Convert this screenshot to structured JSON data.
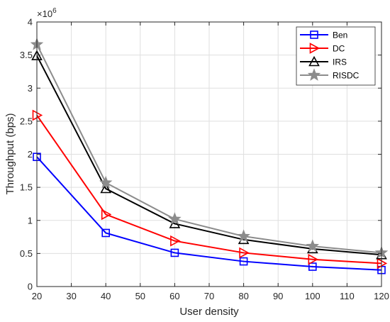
{
  "chart_data": {
    "type": "line",
    "title": "",
    "xlabel": "User density",
    "ylabel": "Throughput (bps)",
    "y_exponent_label": "×10",
    "y_exponent_power": "6",
    "xlim": [
      20,
      120
    ],
    "ylim": [
      0,
      4
    ],
    "y_scale": 1000000,
    "x_ticks": [
      20,
      30,
      40,
      50,
      60,
      70,
      80,
      90,
      100,
      110,
      120
    ],
    "y_ticks": [
      0,
      0.5,
      1,
      1.5,
      2,
      2.5,
      3,
      3.5,
      4
    ],
    "y_tick_labels": [
      "0",
      "0.5",
      "1",
      "1.5",
      "2",
      "2.5",
      "3",
      "3.5",
      "4"
    ],
    "grid": true,
    "legend_position": "top-right",
    "x": [
      20,
      40,
      60,
      80,
      100,
      120
    ],
    "series": [
      {
        "name": "Ben",
        "color": "#0000ff",
        "marker": "square",
        "values": [
          1.96,
          0.81,
          0.51,
          0.38,
          0.3,
          0.25
        ]
      },
      {
        "name": "DC",
        "color": "#ff0000",
        "marker": "triangle-right",
        "values": [
          2.59,
          1.09,
          0.69,
          0.51,
          0.41,
          0.35
        ]
      },
      {
        "name": "IRS",
        "color": "#000000",
        "marker": "triangle-up",
        "values": [
          3.49,
          1.48,
          0.95,
          0.71,
          0.57,
          0.48
        ]
      },
      {
        "name": "RISDC",
        "color": "#8c8c8c",
        "marker": "star",
        "values": [
          3.66,
          1.57,
          1.02,
          0.76,
          0.61,
          0.51
        ]
      }
    ]
  }
}
